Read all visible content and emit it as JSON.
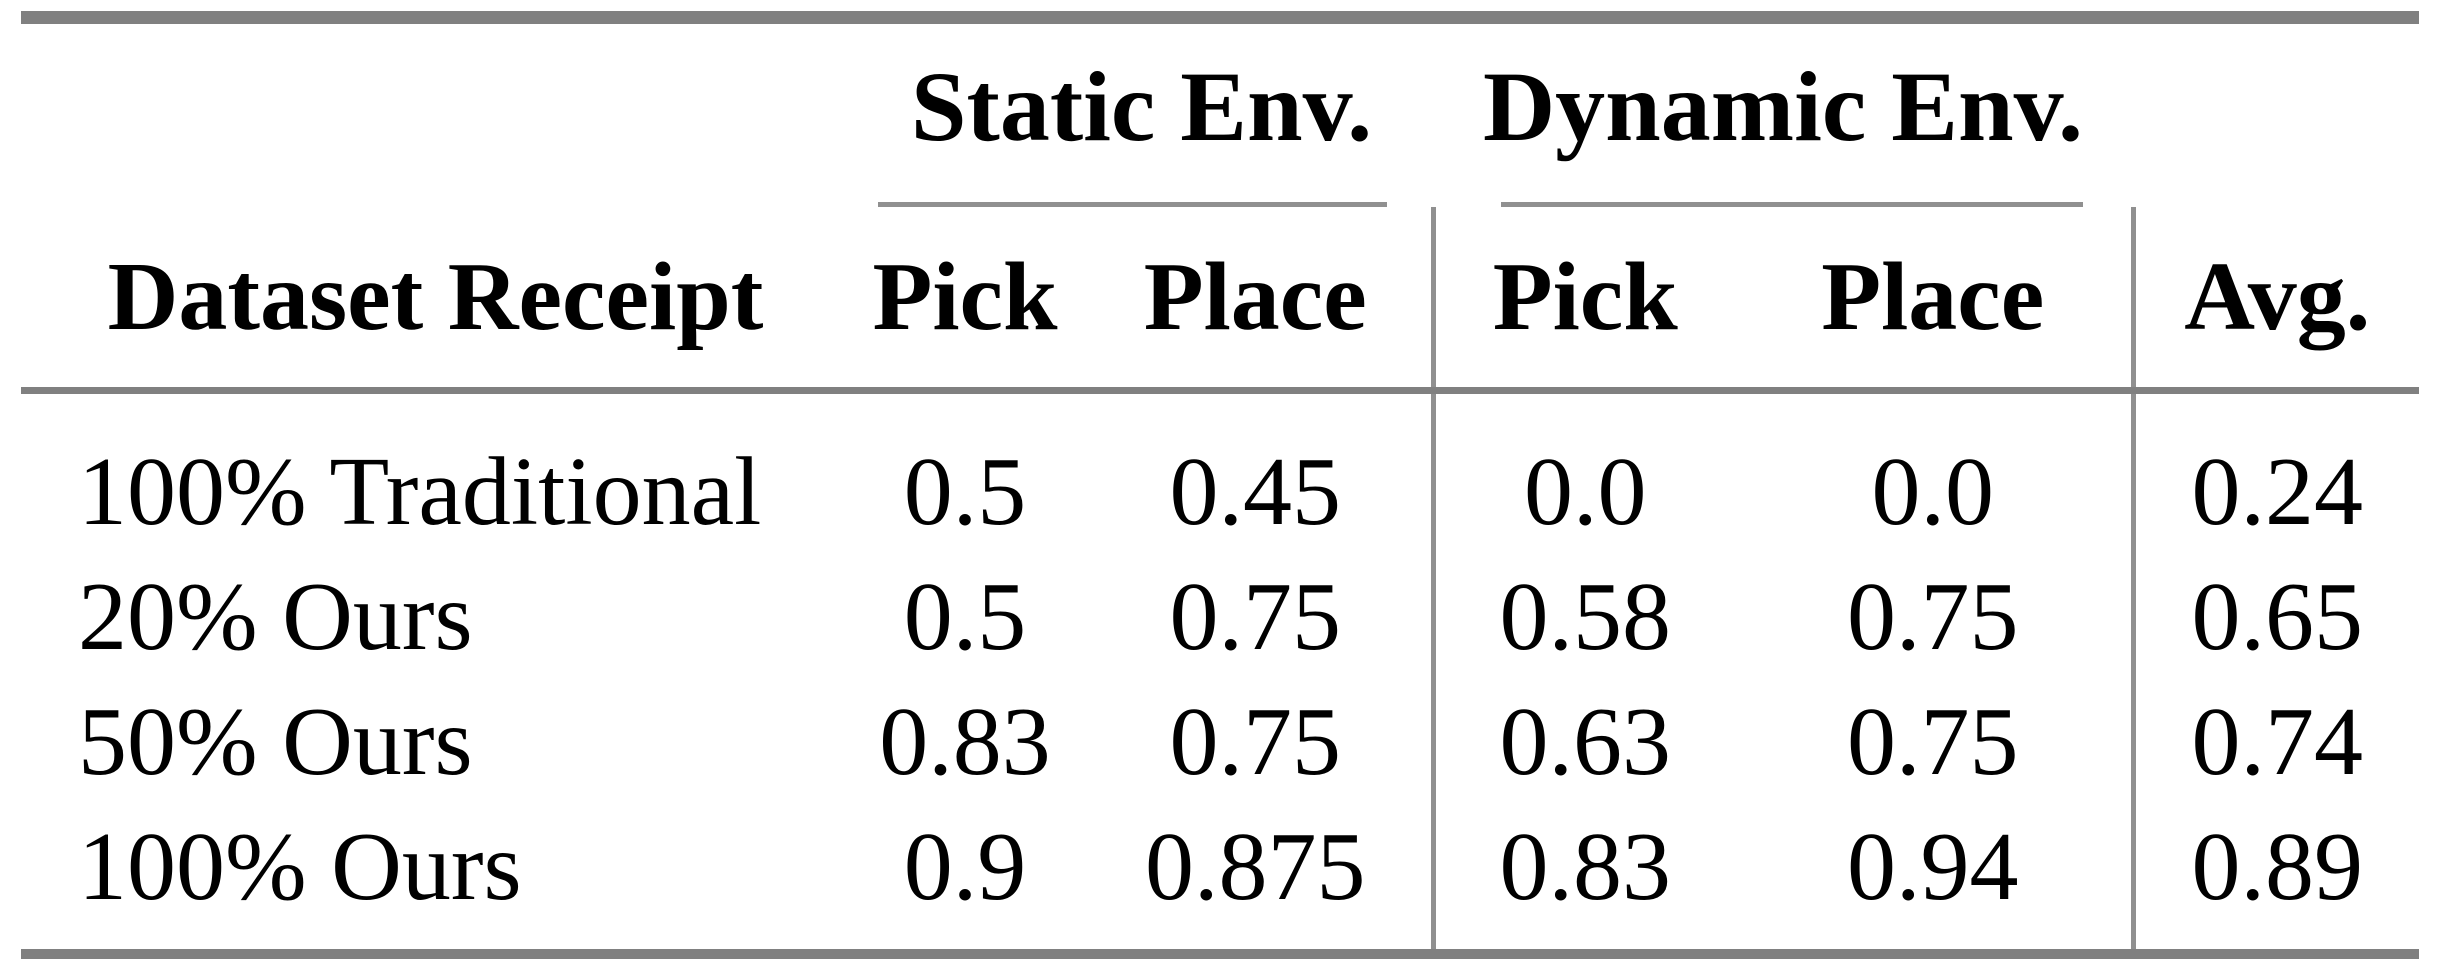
{
  "table": {
    "groups": [
      {
        "label": "Static Env."
      },
      {
        "label": "Dynamic Env."
      }
    ],
    "columns": [
      "Dataset Receipt",
      "Pick",
      "Place",
      "Pick",
      "Place",
      "Avg."
    ],
    "rows": [
      {
        "label": "100% Traditional",
        "values": [
          "0.5",
          "0.45",
          "0.0",
          "0.0",
          "0.24"
        ]
      },
      {
        "label": "20% Ours",
        "values": [
          "0.5",
          "0.75",
          "0.58",
          "0.75",
          "0.65"
        ]
      },
      {
        "label": "50% Ours",
        "values": [
          "0.83",
          "0.75",
          "0.63",
          "0.75",
          "0.74"
        ]
      },
      {
        "label": "100% Ours",
        "values": [
          "0.9",
          "0.875",
          "0.83",
          "0.94",
          "0.89"
        ]
      }
    ],
    "colors": {
      "heavy_rule": "#808080",
      "light_rule": "#909090",
      "text": "#000000",
      "background": "#ffffff"
    }
  }
}
